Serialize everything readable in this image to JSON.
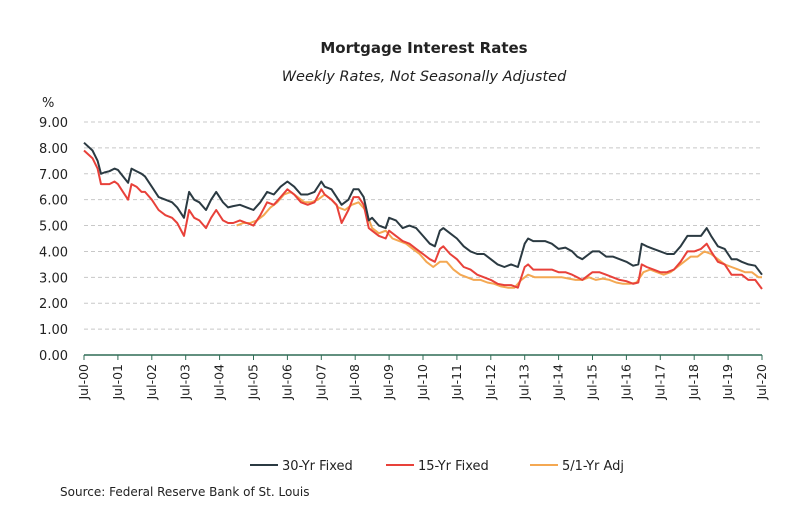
{
  "chart_data": {
    "type": "line",
    "title": "Mortgage Interest Rates",
    "subtitle": "Weekly Rates, Not Seasonally Adjusted",
    "ylabel": "%",
    "ylim": [
      0,
      9
    ],
    "yticks": [
      "0.00",
      "1.00",
      "2.00",
      "3.00",
      "4.00",
      "5.00",
      "6.00",
      "7.00",
      "8.00",
      "9.00"
    ],
    "xlim": [
      2000.5,
      2020.5
    ],
    "xticks": [
      "Jul-00",
      "Jul-01",
      "Jul-02",
      "Jul-03",
      "Jul-04",
      "Jul-05",
      "Jul-06",
      "Jul-07",
      "Jul-08",
      "Jul-09",
      "Jul-10",
      "Jul-11",
      "Jul-12",
      "Jul-13",
      "Jul-14",
      "Jul-15",
      "Jul-16",
      "Jul-17",
      "Jul-18",
      "Jul-19",
      "Jul-20"
    ],
    "grid": "horizontal dashed",
    "legend": "bottom",
    "source": "Source: Federal Reserve Bank of St. Louis",
    "series": [
      {
        "name": "30-Yr Fixed",
        "color": "#2b3a42",
        "x": [
          2000.5,
          2000.75,
          2000.9,
          2001.0,
          2001.1,
          2001.25,
          2001.4,
          2001.5,
          2001.65,
          2001.8,
          2001.9,
          2002.05,
          2002.2,
          2002.3,
          2002.5,
          2002.7,
          2002.9,
          2003.1,
          2003.25,
          2003.45,
          2003.6,
          2003.75,
          2003.9,
          2004.1,
          2004.25,
          2004.4,
          2004.6,
          2004.75,
          2004.9,
          2005.1,
          2005.3,
          2005.5,
          2005.7,
          2005.9,
          2006.1,
          2006.3,
          2006.5,
          2006.7,
          2006.9,
          2007.1,
          2007.3,
          2007.5,
          2007.6,
          2007.8,
          2007.95,
          2008.1,
          2008.3,
          2008.45,
          2008.6,
          2008.75,
          2008.9,
          2009.0,
          2009.2,
          2009.4,
          2009.5,
          2009.7,
          2009.9,
          2010.1,
          2010.3,
          2010.5,
          2010.7,
          2010.85,
          2011.0,
          2011.1,
          2011.3,
          2011.5,
          2011.7,
          2011.9,
          2012.1,
          2012.3,
          2012.5,
          2012.7,
          2012.9,
          2013.1,
          2013.3,
          2013.5,
          2013.6,
          2013.75,
          2013.9,
          2014.1,
          2014.3,
          2014.5,
          2014.7,
          2014.9,
          2015.05,
          2015.2,
          2015.4,
          2015.5,
          2015.7,
          2015.9,
          2016.1,
          2016.3,
          2016.5,
          2016.7,
          2016.85,
          2016.95,
          2017.1,
          2017.3,
          2017.5,
          2017.7,
          2017.9,
          2018.1,
          2018.3,
          2018.5,
          2018.7,
          2018.87,
          2019.0,
          2019.2,
          2019.4,
          2019.6,
          2019.75,
          2019.9,
          2020.1,
          2020.3,
          2020.5
        ],
        "values": [
          8.2,
          7.9,
          7.5,
          7.0,
          7.05,
          7.1,
          7.2,
          7.15,
          6.9,
          6.65,
          7.2,
          7.1,
          7.0,
          6.9,
          6.5,
          6.1,
          6.0,
          5.9,
          5.7,
          5.3,
          6.3,
          6.0,
          5.9,
          5.6,
          6.0,
          6.3,
          5.9,
          5.7,
          5.75,
          5.8,
          5.7,
          5.6,
          5.9,
          6.3,
          6.2,
          6.5,
          6.7,
          6.5,
          6.2,
          6.2,
          6.3,
          6.7,
          6.5,
          6.4,
          6.1,
          5.8,
          6.0,
          6.4,
          6.4,
          6.1,
          5.2,
          5.3,
          5.0,
          4.9,
          5.3,
          5.2,
          4.9,
          5.0,
          4.9,
          4.6,
          4.3,
          4.2,
          4.8,
          4.9,
          4.7,
          4.5,
          4.2,
          4.0,
          3.9,
          3.9,
          3.7,
          3.5,
          3.4,
          3.5,
          3.4,
          4.3,
          4.5,
          4.4,
          4.4,
          4.4,
          4.3,
          4.1,
          4.15,
          4.0,
          3.8,
          3.7,
          3.9,
          4.0,
          4.0,
          3.8,
          3.8,
          3.7,
          3.6,
          3.45,
          3.5,
          4.3,
          4.2,
          4.1,
          4.0,
          3.9,
          3.9,
          4.2,
          4.6,
          4.6,
          4.6,
          4.9,
          4.6,
          4.2,
          4.1,
          3.7,
          3.7,
          3.6,
          3.5,
          3.45,
          3.1
        ]
      },
      {
        "name": "15-Yr Fixed",
        "color": "#e8413a",
        "x": [
          2000.5,
          2000.75,
          2000.9,
          2001.0,
          2001.1,
          2001.25,
          2001.4,
          2001.5,
          2001.65,
          2001.8,
          2001.9,
          2002.05,
          2002.2,
          2002.3,
          2002.5,
          2002.7,
          2002.9,
          2003.1,
          2003.25,
          2003.45,
          2003.6,
          2003.75,
          2003.9,
          2004.1,
          2004.25,
          2004.4,
          2004.6,
          2004.75,
          2004.9,
          2005.1,
          2005.3,
          2005.5,
          2005.7,
          2005.9,
          2006.1,
          2006.3,
          2006.5,
          2006.7,
          2006.9,
          2007.1,
          2007.3,
          2007.5,
          2007.6,
          2007.8,
          2007.95,
          2008.1,
          2008.3,
          2008.45,
          2008.6,
          2008.75,
          2008.9,
          2009.0,
          2009.2,
          2009.4,
          2009.5,
          2009.7,
          2009.9,
          2010.1,
          2010.3,
          2010.5,
          2010.7,
          2010.85,
          2011.0,
          2011.1,
          2011.3,
          2011.5,
          2011.7,
          2011.9,
          2012.1,
          2012.3,
          2012.5,
          2012.7,
          2012.9,
          2013.1,
          2013.3,
          2013.5,
          2013.6,
          2013.75,
          2013.9,
          2014.1,
          2014.3,
          2014.5,
          2014.7,
          2014.9,
          2015.05,
          2015.2,
          2015.4,
          2015.5,
          2015.7,
          2015.9,
          2016.1,
          2016.3,
          2016.5,
          2016.7,
          2016.85,
          2016.95,
          2017.1,
          2017.3,
          2017.5,
          2017.7,
          2017.9,
          2018.1,
          2018.3,
          2018.5,
          2018.7,
          2018.87,
          2019.0,
          2019.2,
          2019.4,
          2019.6,
          2019.75,
          2019.9,
          2020.1,
          2020.3,
          2020.5
        ],
        "values": [
          7.9,
          7.6,
          7.2,
          6.6,
          6.6,
          6.6,
          6.7,
          6.6,
          6.3,
          6.0,
          6.6,
          6.5,
          6.3,
          6.3,
          6.0,
          5.6,
          5.4,
          5.3,
          5.1,
          4.6,
          5.6,
          5.3,
          5.2,
          4.9,
          5.3,
          5.6,
          5.2,
          5.1,
          5.1,
          5.2,
          5.1,
          5.0,
          5.4,
          5.9,
          5.8,
          6.1,
          6.4,
          6.2,
          5.9,
          5.8,
          5.9,
          6.4,
          6.2,
          6.0,
          5.8,
          5.1,
          5.6,
          6.1,
          6.1,
          5.8,
          4.9,
          4.8,
          4.6,
          4.5,
          4.8,
          4.6,
          4.4,
          4.3,
          4.1,
          3.9,
          3.7,
          3.6,
          4.1,
          4.2,
          3.9,
          3.7,
          3.4,
          3.3,
          3.1,
          3.0,
          2.9,
          2.75,
          2.7,
          2.7,
          2.6,
          3.4,
          3.5,
          3.3,
          3.3,
          3.3,
          3.3,
          3.2,
          3.2,
          3.1,
          3.0,
          2.9,
          3.1,
          3.2,
          3.2,
          3.1,
          3.0,
          2.9,
          2.85,
          2.75,
          2.8,
          3.5,
          3.4,
          3.3,
          3.2,
          3.2,
          3.3,
          3.6,
          4.0,
          4.0,
          4.1,
          4.3,
          4.0,
          3.6,
          3.5,
          3.1,
          3.1,
          3.1,
          2.9,
          2.9,
          2.55
        ]
      },
      {
        "name": "5/1-Yr Adj",
        "color": "#f4a852",
        "x": [
          2005.0,
          2005.2,
          2005.4,
          2005.6,
          2005.8,
          2006.0,
          2006.2,
          2006.4,
          2006.6,
          2006.8,
          2007.0,
          2007.2,
          2007.4,
          2007.6,
          2007.8,
          2008.0,
          2008.2,
          2008.4,
          2008.6,
          2008.8,
          2009.0,
          2009.2,
          2009.4,
          2009.6,
          2009.8,
          2010.0,
          2010.2,
          2010.4,
          2010.6,
          2010.8,
          2011.0,
          2011.2,
          2011.4,
          2011.6,
          2011.8,
          2012.0,
          2012.2,
          2012.4,
          2012.6,
          2012.8,
          2013.0,
          2013.2,
          2013.4,
          2013.6,
          2013.8,
          2014.0,
          2014.2,
          2014.4,
          2014.6,
          2014.8,
          2015.0,
          2015.2,
          2015.4,
          2015.6,
          2015.8,
          2016.0,
          2016.2,
          2016.4,
          2016.6,
          2016.8,
          2017.0,
          2017.2,
          2017.4,
          2017.6,
          2017.8,
          2018.0,
          2018.2,
          2018.4,
          2018.6,
          2018.8,
          2019.0,
          2019.2,
          2019.4,
          2019.6,
          2019.8,
          2020.0,
          2020.2,
          2020.4,
          2020.5
        ],
        "values": [
          5.0,
          5.1,
          5.1,
          5.2,
          5.4,
          5.7,
          5.9,
          6.2,
          6.3,
          6.1,
          5.9,
          5.9,
          6.0,
          6.2,
          6.0,
          5.7,
          5.6,
          5.8,
          5.9,
          5.6,
          4.9,
          4.7,
          4.8,
          4.5,
          4.4,
          4.3,
          4.1,
          3.9,
          3.6,
          3.4,
          3.6,
          3.6,
          3.3,
          3.1,
          3.0,
          2.9,
          2.9,
          2.8,
          2.75,
          2.65,
          2.6,
          2.6,
          2.9,
          3.1,
          3.0,
          3.0,
          3.0,
          3.0,
          3.0,
          2.95,
          2.9,
          2.9,
          3.0,
          2.9,
          2.95,
          2.9,
          2.8,
          2.75,
          2.75,
          2.8,
          3.2,
          3.3,
          3.2,
          3.1,
          3.2,
          3.4,
          3.6,
          3.8,
          3.8,
          4.0,
          3.9,
          3.7,
          3.5,
          3.4,
          3.3,
          3.2,
          3.2,
          3.0,
          3.0
        ]
      }
    ]
  }
}
